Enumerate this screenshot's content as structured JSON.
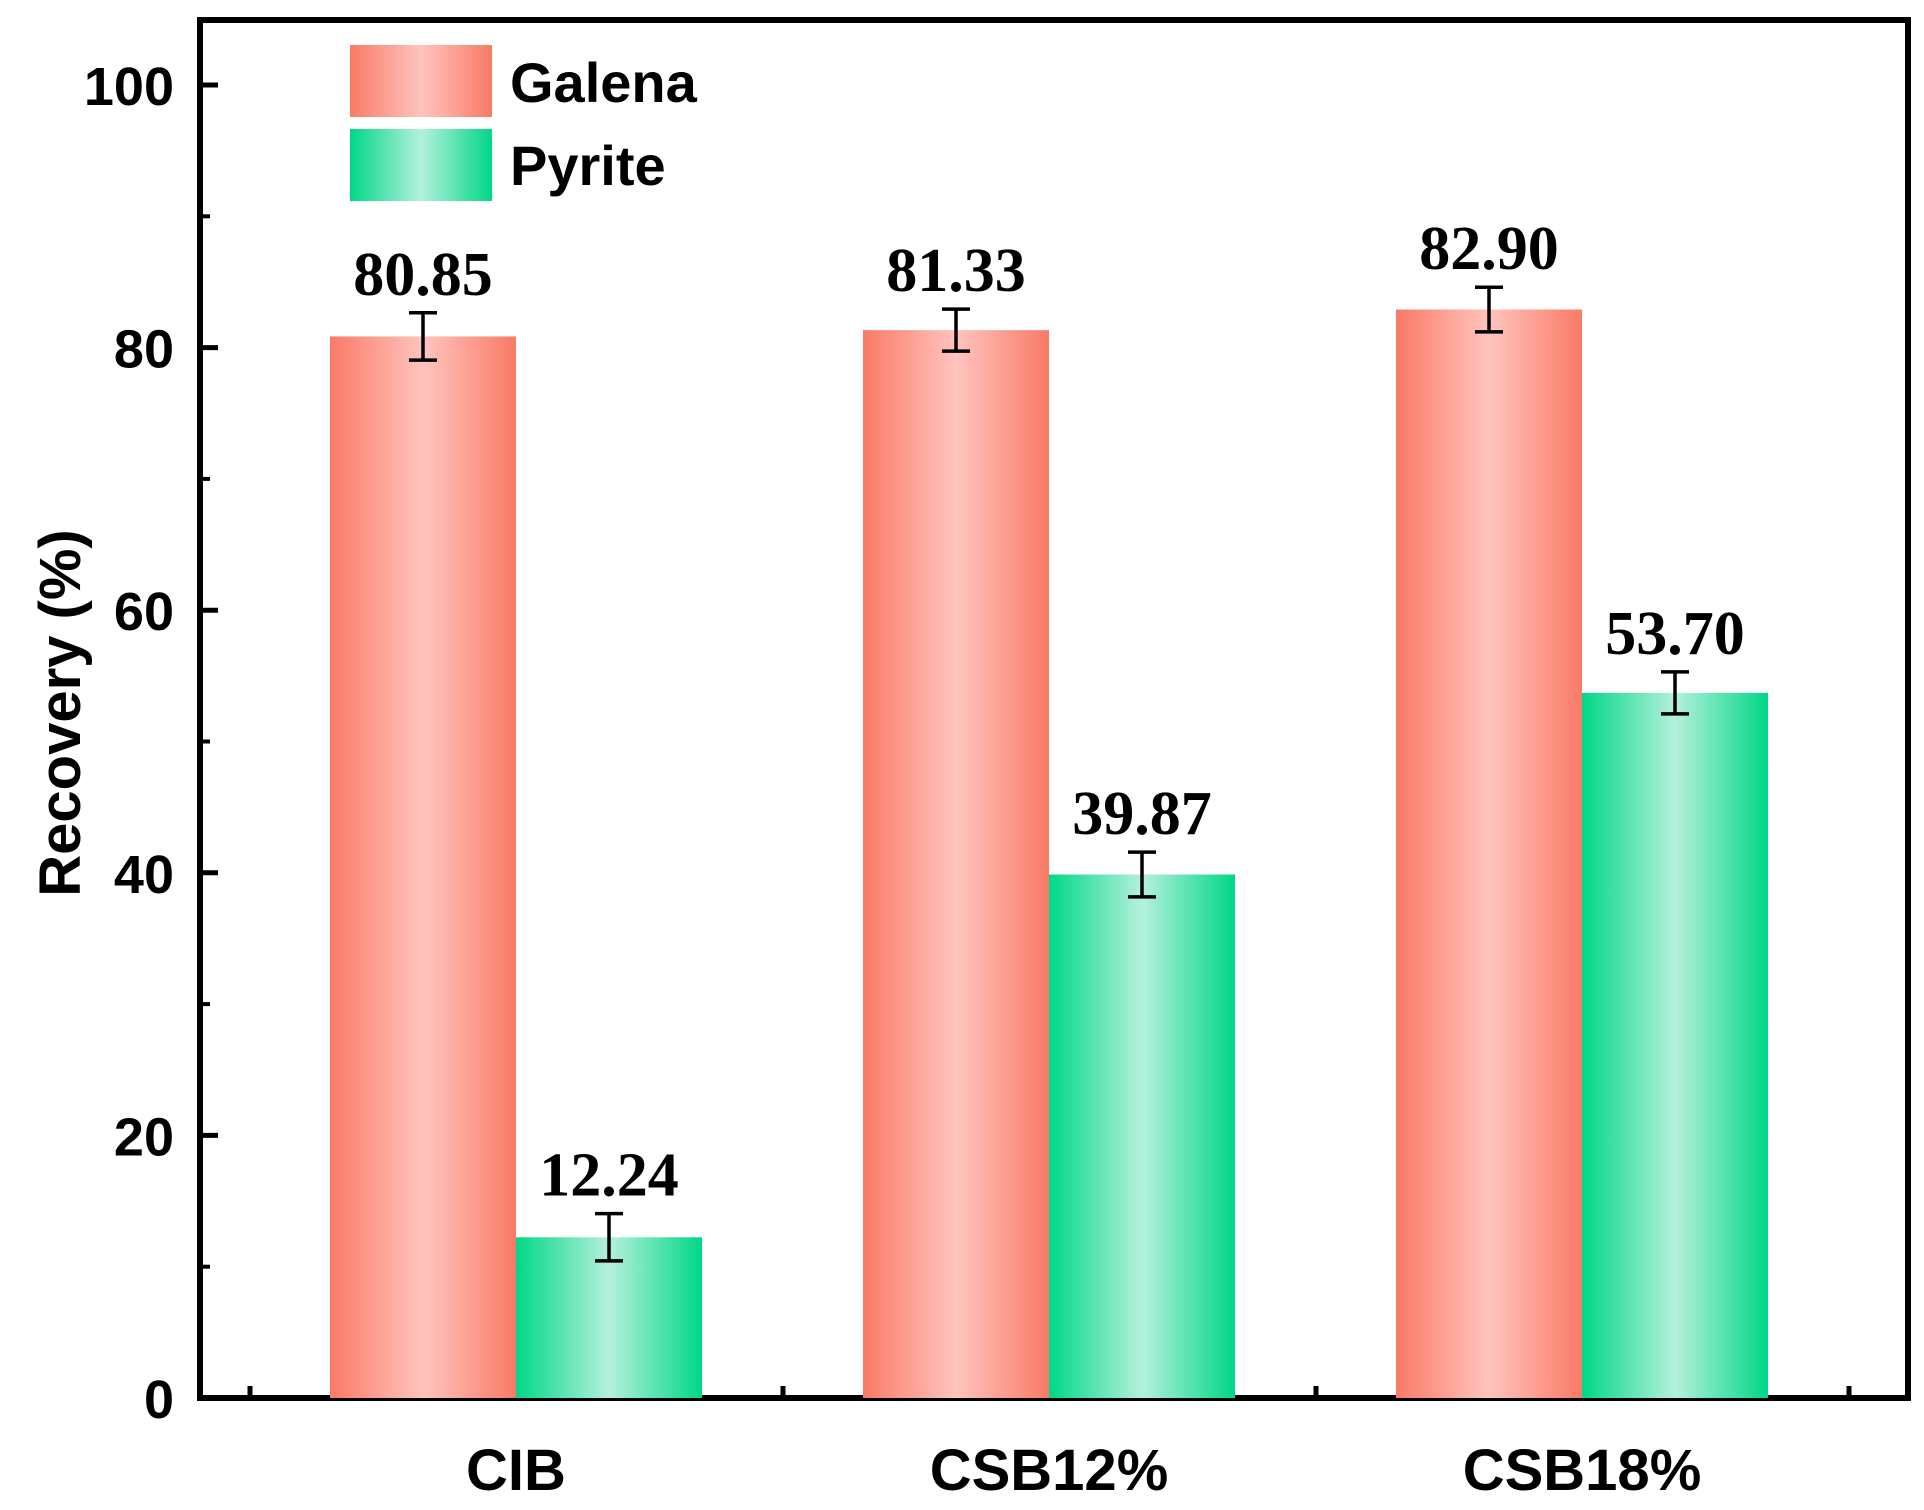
{
  "chart_data": {
    "type": "bar",
    "title": "",
    "xlabel": "",
    "ylabel": "Recovery (%)",
    "ylim": [
      0,
      105
    ],
    "yticks": [
      0,
      20,
      40,
      60,
      80,
      100
    ],
    "categories": [
      "CIB",
      "CSB12%",
      "CSB18%"
    ],
    "series": [
      {
        "name": "Galena",
        "color": "#f97a66",
        "color_light": "#ffc2bc",
        "values": [
          80.85,
          81.33,
          82.9
        ],
        "labels": [
          "80.85",
          "81.33",
          "82.90"
        ],
        "errors": [
          1.8,
          1.6,
          1.7
        ]
      },
      {
        "name": "Pyrite",
        "color": "#00d787",
        "color_light": "#b2f0da",
        "values": [
          12.24,
          39.87,
          53.7
        ],
        "labels": [
          "12.24",
          "39.87",
          "53.70"
        ],
        "errors": [
          1.8,
          1.7,
          1.6
        ]
      }
    ],
    "legend": {
      "position": "top-left",
      "entries": [
        "Galena",
        "Pyrite"
      ]
    },
    "grid": false
  }
}
